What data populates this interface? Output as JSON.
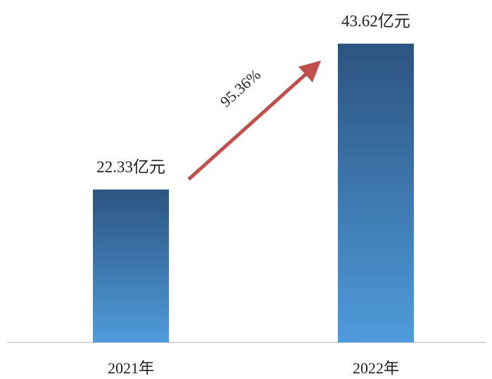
{
  "chart_data": {
    "type": "bar",
    "categories": [
      "2021年",
      "2022年"
    ],
    "values": [
      22.33,
      43.62
    ],
    "value_labels": [
      "22.33亿元",
      "43.62亿元"
    ],
    "annotation": "95.36%",
    "ylim": [
      0,
      45
    ],
    "color": "#3f7fbf"
  }
}
